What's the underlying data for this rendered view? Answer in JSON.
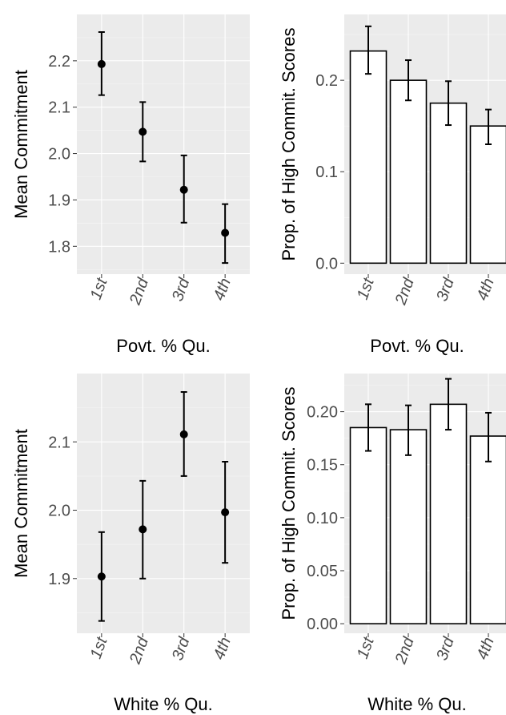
{
  "chart_data": [
    {
      "id": "p1",
      "type": "scatter",
      "xlabel": "Povt. % Qu.",
      "ylabel": "Mean Commitment",
      "categories": [
        "1st",
        "2nd",
        "3rd",
        "4th"
      ],
      "values": [
        2.193,
        2.047,
        1.922,
        1.829
      ],
      "err_low": [
        2.126,
        1.983,
        1.851,
        1.764
      ],
      "err_high": [
        2.262,
        2.111,
        1.996,
        1.891
      ],
      "ylim": [
        1.74,
        2.3
      ],
      "yticks": [
        1.8,
        1.9,
        2.0,
        2.1,
        2.2
      ],
      "ytick_labels": [
        "1.8",
        "1.9",
        "2.0",
        "2.1",
        "2.2"
      ]
    },
    {
      "id": "p2",
      "type": "bar",
      "xlabel": "Povt. % Qu.",
      "ylabel": "Prop. of High Commit. Scores",
      "categories": [
        "1st",
        "2nd",
        "3rd",
        "4th"
      ],
      "values": [
        0.232,
        0.2,
        0.175,
        0.15
      ],
      "err_low": [
        0.207,
        0.178,
        0.151,
        0.13
      ],
      "err_high": [
        0.259,
        0.222,
        0.199,
        0.168
      ],
      "ylim": [
        -0.012,
        0.272
      ],
      "yticks": [
        0.0,
        0.1,
        0.2
      ],
      "ytick_labels": [
        "0.0",
        "0.1",
        "0.2"
      ]
    },
    {
      "id": "p3",
      "type": "scatter",
      "xlabel": "White % Qu.",
      "ylabel": "Mean Commitment",
      "categories": [
        "1st",
        "2nd",
        "3rd",
        "4th"
      ],
      "values": [
        1.903,
        1.972,
        2.111,
        1.997
      ],
      "err_low": [
        1.838,
        1.9,
        2.05,
        1.923
      ],
      "err_high": [
        1.968,
        2.043,
        2.173,
        2.071
      ],
      "ylim": [
        1.82,
        2.2
      ],
      "yticks": [
        1.9,
        2.0,
        2.1
      ],
      "ytick_labels": [
        "1.9",
        "2.0",
        "2.1"
      ]
    },
    {
      "id": "p4",
      "type": "bar",
      "xlabel": "White % Qu.",
      "ylabel": "Prop. of High Commit. Scores",
      "categories": [
        "1st",
        "2nd",
        "3rd",
        "4th"
      ],
      "values": [
        0.185,
        0.183,
        0.207,
        0.177
      ],
      "err_low": [
        0.163,
        0.159,
        0.183,
        0.153
      ],
      "err_high": [
        0.207,
        0.206,
        0.231,
        0.199
      ],
      "ylim": [
        -0.009,
        0.236
      ],
      "yticks": [
        0.0,
        0.05,
        0.1,
        0.15,
        0.2
      ],
      "ytick_labels": [
        "0.00",
        "0.05",
        "0.10",
        "0.15",
        "0.20"
      ]
    }
  ]
}
